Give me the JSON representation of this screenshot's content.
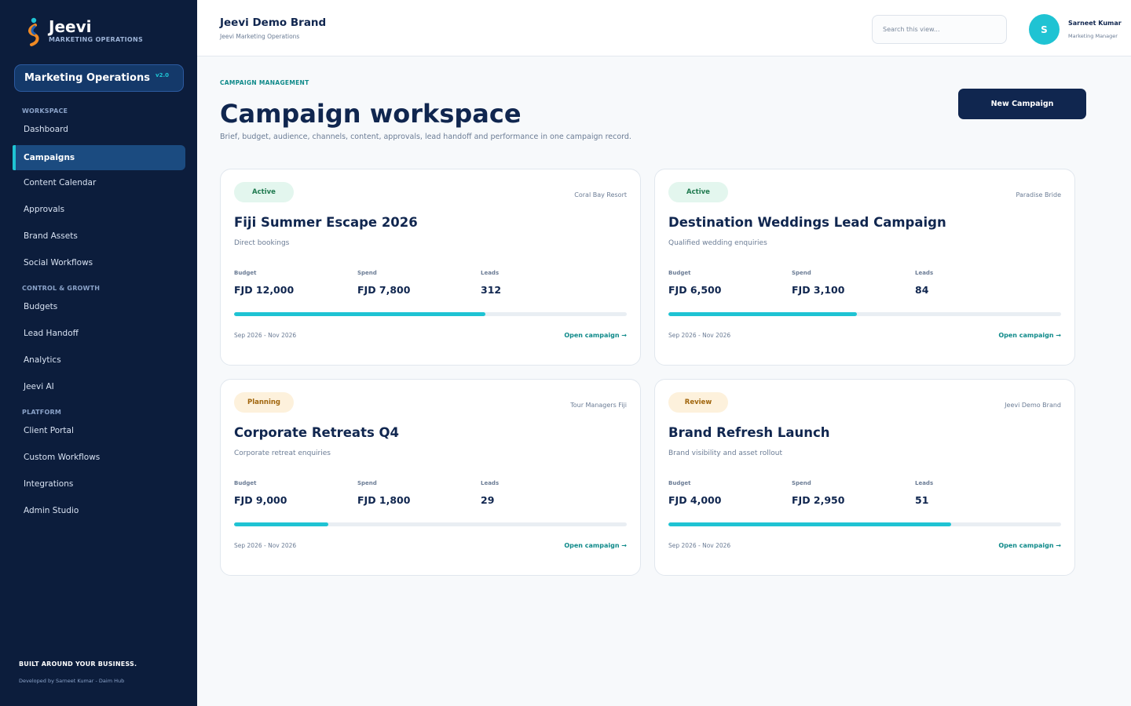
{
  "sidebar": {
    "logo_name": "Jeevi",
    "logo_sub": "MARKETING OPERATIONS",
    "module_label": "Marketing Operations",
    "module_version": "v2.0",
    "sections": [
      {
        "label": "WORKSPACE",
        "items": [
          "Dashboard",
          "Campaigns",
          "Content Calendar",
          "Approvals",
          "Brand Assets",
          "Social Workflows"
        ]
      },
      {
        "label": "CONTROL & GROWTH",
        "items": [
          "Budgets",
          "Lead Handoff",
          "Analytics",
          "Jeevi AI"
        ]
      },
      {
        "label": "PLATFORM",
        "items": [
          "Client Portal",
          "Custom Workflows",
          "Integrations",
          "Admin Studio"
        ]
      }
    ],
    "active_item": "Campaigns",
    "footer_title": "BUILT AROUND YOUR BUSINESS.",
    "footer_sub": "Developed by Sarneet Kumar - Daim Hub"
  },
  "header": {
    "brand_title": "Jeevi Demo Brand",
    "brand_sub": "Jeevi Marketing Operations",
    "search_placeholder": "Search this view...",
    "avatar_initial": "S",
    "user_name": "Sarneet Kumar",
    "user_role": "Marketing Manager"
  },
  "main": {
    "eyebrow": "CAMPAIGN MANAGEMENT",
    "title": "Campaign workspace",
    "description": "Brief, budget, audience, channels, content, approvals, lead handoff and performance in one campaign record.",
    "new_button": "New Campaign",
    "metric_labels": {
      "budget": "Budget",
      "spend": "Spend",
      "leads": "Leads"
    },
    "open_label": "Open campaign →",
    "campaigns": [
      {
        "status": "Active",
        "client": "Coral Bay Resort",
        "name": "Fiji Summer Escape 2026",
        "goal": "Direct bookings",
        "budget": "FJD 12,000",
        "spend": "FJD 7,800",
        "leads": "312",
        "progress": 0.64,
        "dates": "Sep 2026 - Nov 2026"
      },
      {
        "status": "Active",
        "client": "Paradise Bride",
        "name": "Destination Weddings Lead Campaign",
        "goal": "Qualified wedding enquiries",
        "budget": "FJD 6,500",
        "spend": "FJD 3,100",
        "leads": "84",
        "progress": 0.48,
        "dates": "Sep 2026 - Nov 2026"
      },
      {
        "status": "Planning",
        "client": "Tour Managers Fiji",
        "name": "Corporate Retreats Q4",
        "goal": "Corporate retreat enquiries",
        "budget": "FJD 9,000",
        "spend": "FJD 1,800",
        "leads": "29",
        "progress": 0.24,
        "dates": "Sep 2026 - Nov 2026"
      },
      {
        "status": "Review",
        "client": "Jeevi Demo Brand",
        "name": "Brand Refresh Launch",
        "goal": "Brand visibility and asset rollout",
        "budget": "FJD 4,000",
        "spend": "FJD 2,950",
        "leads": "51",
        "progress": 0.72,
        "dates": "Sep 2026 - Nov 2026"
      }
    ]
  },
  "colors": {
    "sidebar_bg": "#0c1d3c",
    "accent_cyan": "#1fc3d3",
    "navy": "#10264f",
    "teal_link": "#0f8a8a",
    "badge_active_bg": "#e3f6ee",
    "badge_active_text": "#1f7a4f",
    "badge_planning_bg": "#fdf1dc",
    "badge_planning_text": "#a0650d",
    "badge_review_bg": "#fdf1dc",
    "badge_review_text": "#a0650d"
  }
}
